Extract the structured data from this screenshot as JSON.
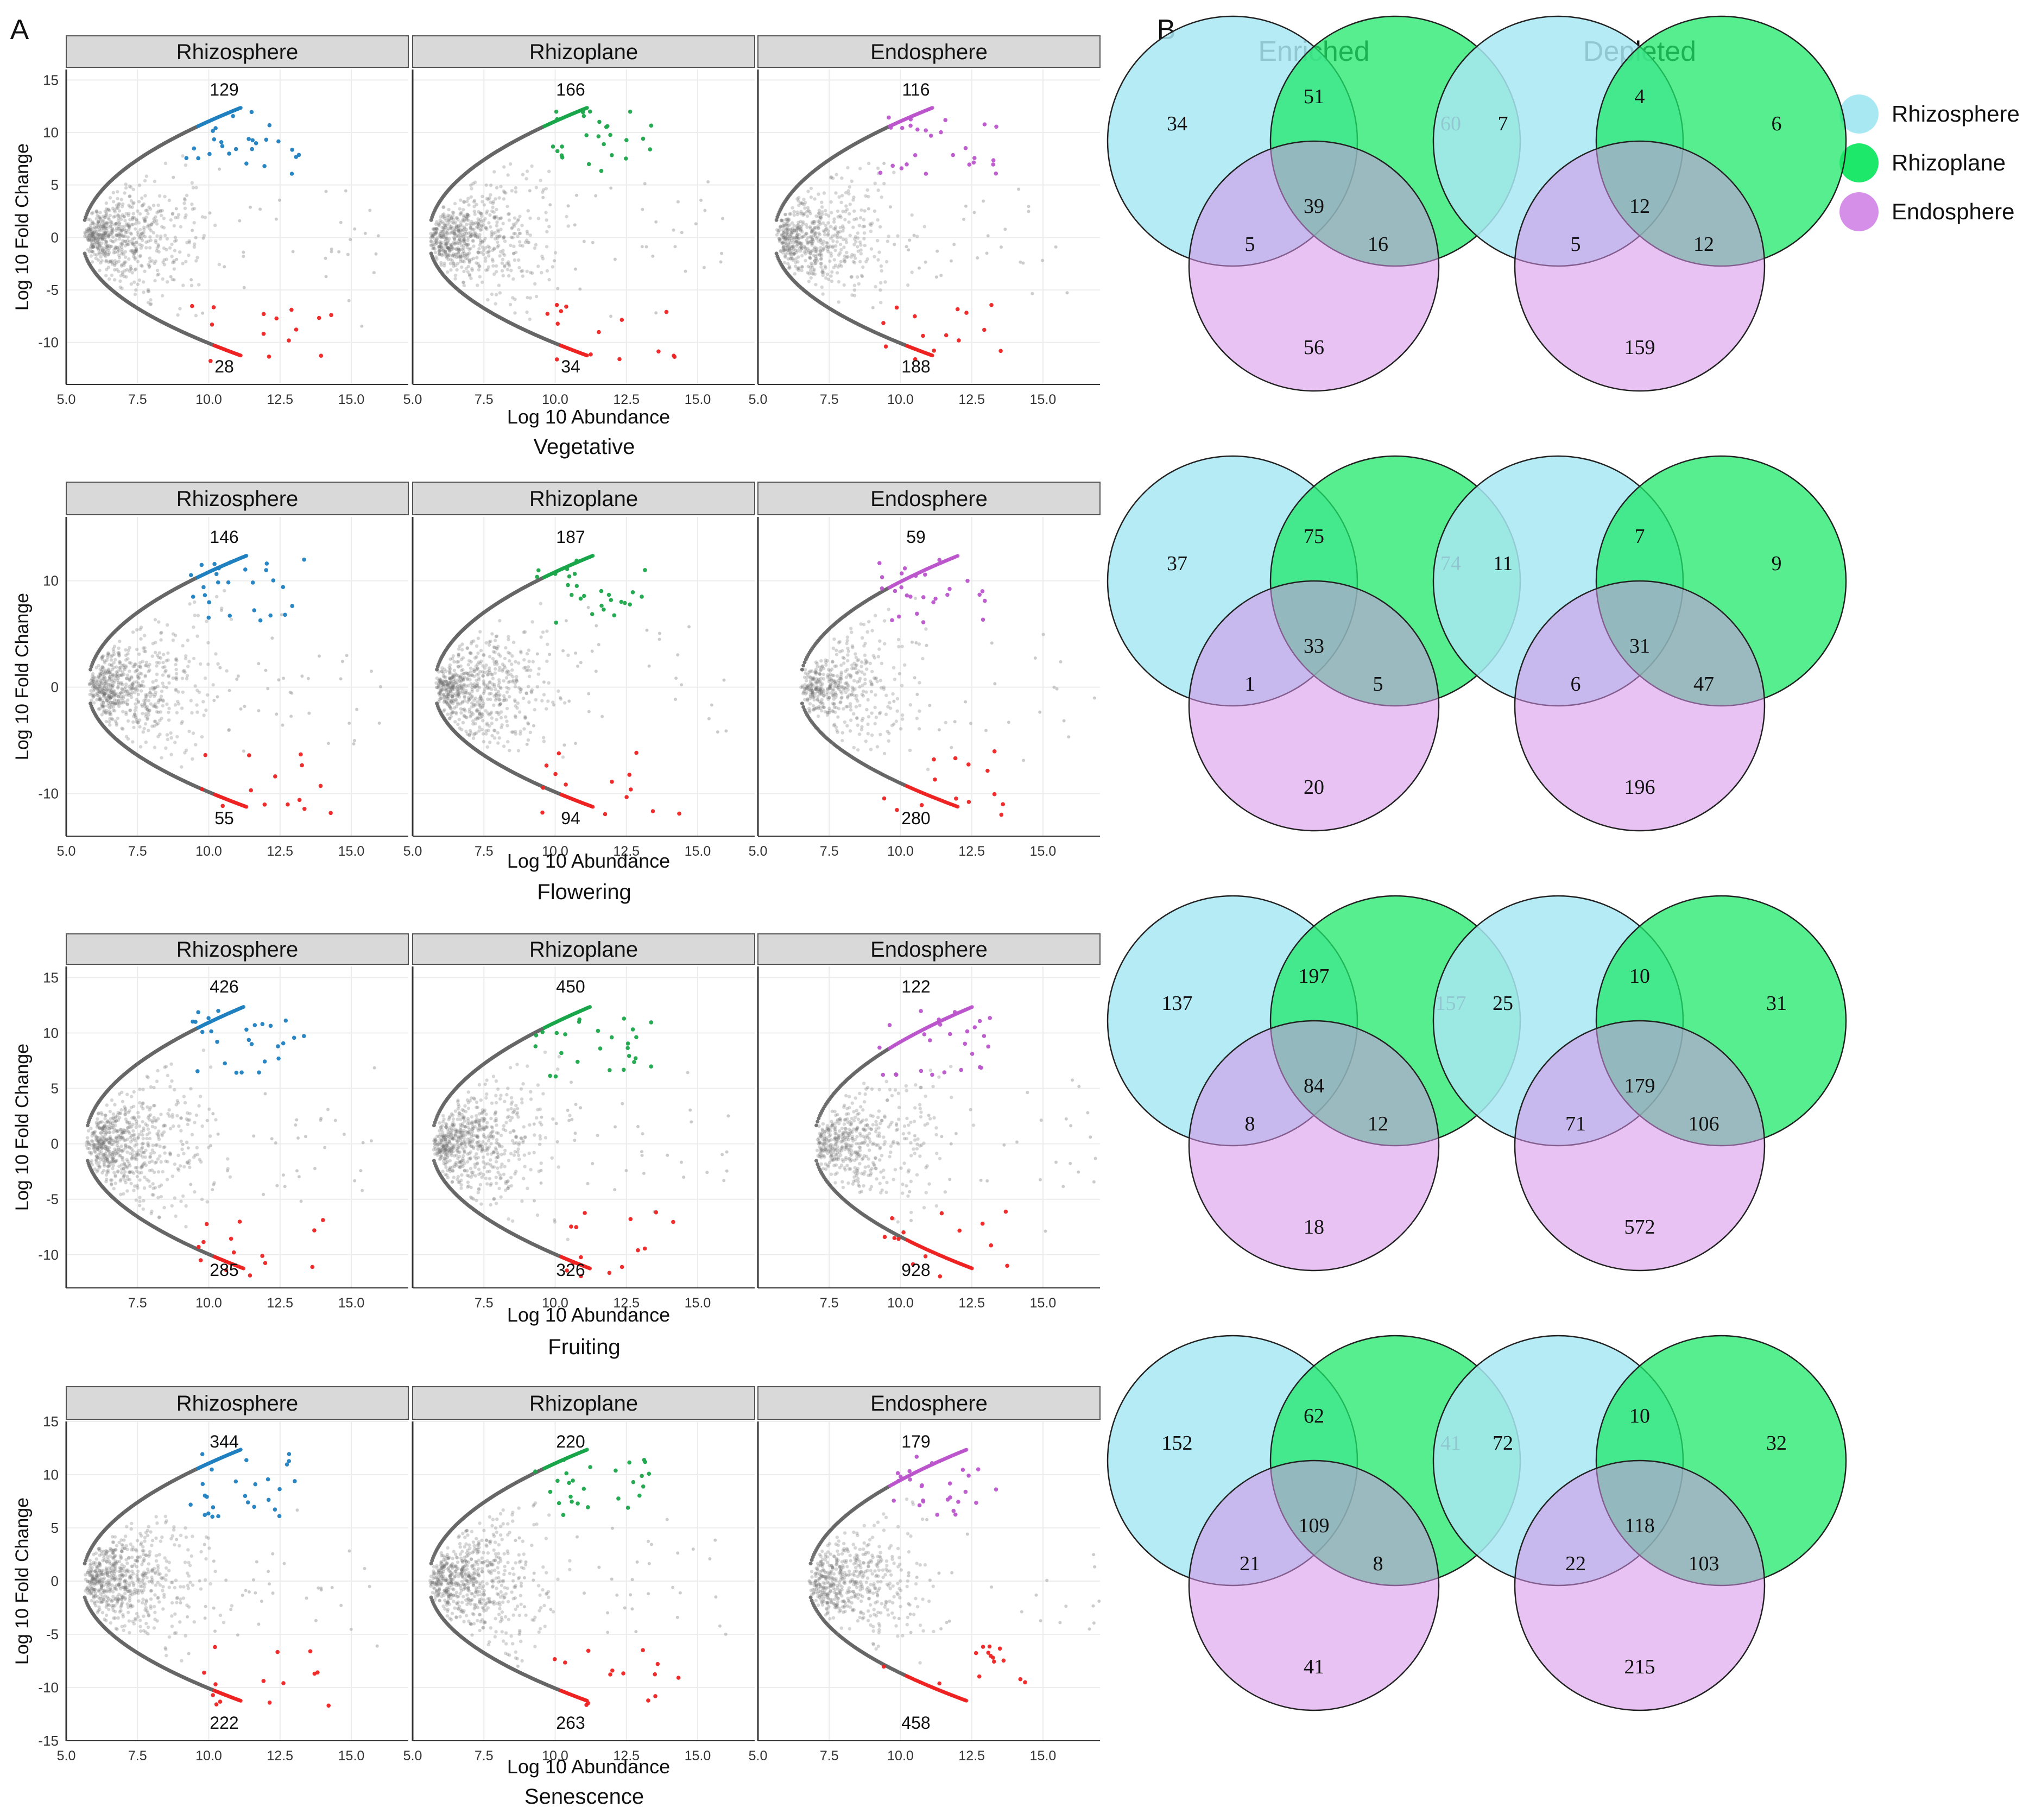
{
  "panel_a_label": "A",
  "panel_b_label": "B",
  "colors": {
    "rhizosphere": "#1f7fc0",
    "rhizoplane": "#1aa64a",
    "endosphere": "#bb55cc",
    "depleted": "#ee2222",
    "strip_bg": "#d9d9d9",
    "venn_rhizosphere": "#a8e8f2",
    "venn_rhizoplane": "#1ee86a",
    "venn_endosphere": "#d68fe8"
  },
  "chart_data": [
    {
      "type": "scatter",
      "stage": "Vegetative",
      "xlabel": "Log 10 Abundance",
      "ylabel": "Log 10 Fold Change",
      "ylim": [
        -14,
        16
      ],
      "yticks": [
        -10,
        -5,
        0,
        5,
        10,
        15
      ],
      "ytick_labels": [
        "-10",
        "-5",
        "0",
        "5",
        "10",
        "15"
      ],
      "facets": [
        {
          "name": "Rhizosphere",
          "xlim": [
            5,
            17
          ],
          "xticks": [
            5.0,
            7.5,
            10.0,
            12.5,
            15.0
          ],
          "xtick_labels": [
            "5.0",
            "7.5",
            "10.0",
            "12.5",
            "15.0"
          ],
          "enriched_count": "129",
          "depleted_count": "28",
          "enriched_color": "rhizosphere",
          "density": 1.0,
          "x_min": 5.6
        },
        {
          "name": "Rhizoplane",
          "xlim": [
            5,
            17
          ],
          "xticks": [
            5.0,
            7.5,
            10.0,
            12.5,
            15.0
          ],
          "xtick_labels": [
            "5.0",
            "7.5",
            "10.0",
            "12.5",
            "15.0"
          ],
          "enriched_count": "166",
          "depleted_count": "34",
          "enriched_color": "rhizoplane",
          "density": 1.0,
          "x_min": 5.6
        },
        {
          "name": "Endosphere",
          "xlim": [
            5,
            17
          ],
          "xticks": [
            5.0,
            7.5,
            10.0,
            12.5,
            15.0
          ],
          "xtick_labels": [
            "5.0",
            "7.5",
            "10.0",
            "12.5",
            "15.0"
          ],
          "enriched_count": "116",
          "depleted_count": "188",
          "enriched_color": "endosphere",
          "density": 0.9,
          "x_min": 5.6
        }
      ]
    },
    {
      "type": "scatter",
      "stage": "Flowering",
      "xlabel": "Log 10 Abundance",
      "ylabel": "Log 10 Fold Change",
      "ylim": [
        -14,
        16
      ],
      "yticks": [
        -10,
        0,
        10
      ],
      "ytick_labels": [
        "-10",
        "0",
        "10"
      ],
      "facets": [
        {
          "name": "Rhizosphere",
          "xlim": [
            5,
            17
          ],
          "xticks": [
            5.0,
            7.5,
            10.0,
            12.5,
            15.0
          ],
          "xtick_labels": [
            "5.0",
            "7.5",
            "10.0",
            "12.5",
            "15.0"
          ],
          "enriched_count": "146",
          "depleted_count": "55",
          "enriched_color": "rhizosphere",
          "density": 1.0,
          "x_min": 5.8
        },
        {
          "name": "Rhizoplane",
          "xlim": [
            5,
            17
          ],
          "xticks": [
            5.0,
            7.5,
            10.0,
            12.5,
            15.0
          ],
          "xtick_labels": [
            "5.0",
            "7.5",
            "10.0",
            "12.5",
            "15.0"
          ],
          "enriched_count": "187",
          "depleted_count": "94",
          "enriched_color": "rhizoplane",
          "density": 1.0,
          "x_min": 5.8
        },
        {
          "name": "Endosphere",
          "xlim": [
            5,
            17
          ],
          "xticks": [
            5.0,
            7.5,
            10.0,
            12.5,
            15.0
          ],
          "xtick_labels": [
            "5.0",
            "7.5",
            "10.0",
            "12.5",
            "15.0"
          ],
          "enriched_count": "59",
          "depleted_count": "280",
          "enriched_color": "endosphere",
          "density": 0.7,
          "x_min": 6.5
        }
      ]
    },
    {
      "type": "scatter",
      "stage": "Fruiting",
      "xlabel": "Log 10 Abundance",
      "ylabel": "Log 10 Fold Change",
      "ylim": [
        -13,
        16
      ],
      "yticks": [
        -10,
        -5,
        0,
        5,
        10,
        15
      ],
      "ytick_labels": [
        "-10",
        "-5",
        "0",
        "5",
        "10",
        "15"
      ],
      "facets": [
        {
          "name": "Rhizosphere",
          "xlim": [
            5,
            17
          ],
          "xticks": [
            7.5,
            10.0,
            12.5,
            15.0
          ],
          "xtick_labels": [
            "7.5",
            "10.0",
            "12.5",
            "15.0"
          ],
          "enriched_count": "426",
          "depleted_count": "285",
          "enriched_color": "rhizosphere",
          "density": 1.0,
          "x_min": 5.7
        },
        {
          "name": "Rhizoplane",
          "xlim": [
            5,
            17
          ],
          "xticks": [
            7.5,
            10.0,
            12.5,
            15.0
          ],
          "xtick_labels": [
            "7.5",
            "10.0",
            "12.5",
            "15.0"
          ],
          "enriched_count": "450",
          "depleted_count": "326",
          "enriched_color": "rhizoplane",
          "density": 1.0,
          "x_min": 5.7
        },
        {
          "name": "Endosphere",
          "xlim": [
            5,
            17
          ],
          "xticks": [
            7.5,
            10.0,
            12.5,
            15.0
          ],
          "xtick_labels": [
            "7.5",
            "10.0",
            "12.5",
            "15.0"
          ],
          "enriched_count": "122",
          "depleted_count": "928",
          "enriched_color": "endosphere",
          "density": 0.75,
          "x_min": 7.0
        }
      ]
    },
    {
      "type": "scatter",
      "stage": "Senescence",
      "xlabel": "Log 10 Abundance",
      "ylabel": "Log 10 Fold Change",
      "ylim": [
        -15,
        15
      ],
      "yticks": [
        -15,
        -10,
        -5,
        0,
        5,
        10,
        15
      ],
      "ytick_labels": [
        "-15",
        "-10",
        "-5",
        "0",
        "5",
        "10",
        "15"
      ],
      "facets": [
        {
          "name": "Rhizosphere",
          "xlim": [
            5,
            17
          ],
          "xticks": [
            5.0,
            7.5,
            10.0,
            12.5,
            15.0
          ],
          "xtick_labels": [
            "5.0",
            "7.5",
            "10.0",
            "12.5",
            "15.0"
          ],
          "enriched_count": "344",
          "depleted_count": "222",
          "enriched_color": "rhizosphere",
          "density": 1.0,
          "x_min": 5.6
        },
        {
          "name": "Rhizoplane",
          "xlim": [
            5,
            17
          ],
          "xticks": [
            5.0,
            7.5,
            10.0,
            12.5,
            15.0
          ],
          "xtick_labels": [
            "5.0",
            "7.5",
            "10.0",
            "12.5",
            "15.0"
          ],
          "enriched_count": "220",
          "depleted_count": "263",
          "enriched_color": "rhizoplane",
          "density": 1.0,
          "x_min": 5.6
        },
        {
          "name": "Endosphere",
          "xlim": [
            5,
            17
          ],
          "xticks": [
            5.0,
            7.5,
            10.0,
            12.5,
            15.0
          ],
          "xtick_labels": [
            "5.0",
            "7.5",
            "10.0",
            "12.5",
            "15.0"
          ],
          "enriched_count": "179",
          "depleted_count": "458",
          "enriched_color": "endosphere",
          "density": 0.8,
          "x_min": 6.8
        }
      ]
    }
  ],
  "venn": {
    "column_titles": [
      "Enriched",
      "Depleted"
    ],
    "legend": [
      {
        "label": "Rhizosphere",
        "color": "venn_rhizosphere"
      },
      {
        "label": "Rhizoplane",
        "color": "venn_rhizoplane"
      },
      {
        "label": "Endosphere",
        "color": "venn_endosphere"
      }
    ],
    "rows": [
      {
        "stage": "Vegetative",
        "enriched": {
          "rs": "34",
          "rp": "60",
          "en": "56",
          "rs_rp": "51",
          "rs_en": "5",
          "rp_en": "16",
          "all": "39"
        },
        "depleted": {
          "rs": "7",
          "rp": "6",
          "en": "159",
          "rs_rp": "4",
          "rs_en": "5",
          "rp_en": "12",
          "all": "12"
        }
      },
      {
        "stage": "Flowering",
        "enriched": {
          "rs": "37",
          "rp": "74",
          "en": "20",
          "rs_rp": "75",
          "rs_en": "1",
          "rp_en": "5",
          "all": "33"
        },
        "depleted": {
          "rs": "11",
          "rp": "9",
          "en": "196",
          "rs_rp": "7",
          "rs_en": "6",
          "rp_en": "47",
          "all": "31"
        }
      },
      {
        "stage": "Fruiting",
        "enriched": {
          "rs": "137",
          "rp": "157",
          "en": "18",
          "rs_rp": "197",
          "rs_en": "8",
          "rp_en": "12",
          "all": "84"
        },
        "depleted": {
          "rs": "25",
          "rp": "31",
          "en": "572",
          "rs_rp": "10",
          "rs_en": "71",
          "rp_en": "106",
          "all": "179"
        }
      },
      {
        "stage": "Senescence",
        "enriched": {
          "rs": "152",
          "rp": "41",
          "en": "41",
          "rs_rp": "62",
          "rs_en": "21",
          "rp_en": "8",
          "all": "109"
        },
        "depleted": {
          "rs": "72",
          "rp": "32",
          "en": "215",
          "rs_rp": "10",
          "rs_en": "22",
          "rp_en": "103",
          "all": "118"
        }
      }
    ]
  }
}
